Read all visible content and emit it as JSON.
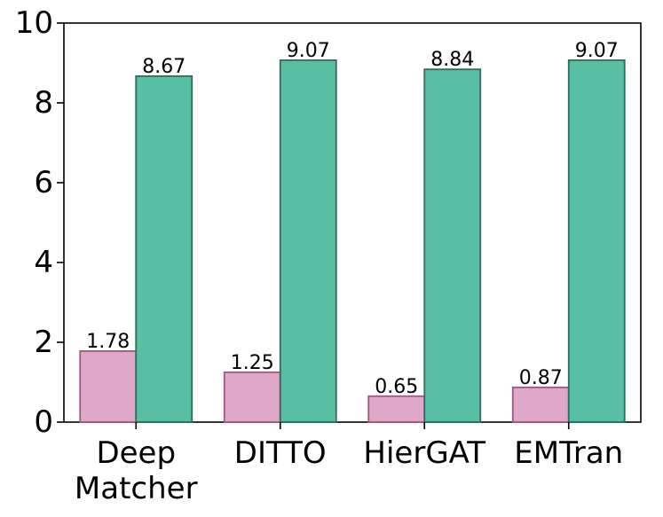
{
  "chart_data": {
    "type": "bar",
    "categories": [
      "Deep\nMatcher",
      "DITTO",
      "HierGAT",
      "EMTran"
    ],
    "series": [
      {
        "values": [
          1.78,
          1.25,
          0.65,
          0.87
        ],
        "color": "#e0a8c8",
        "edge": "#a0577e"
      },
      {
        "values": [
          8.67,
          9.07,
          8.84,
          9.07
        ],
        "color": "#59bfa3",
        "edge": "#2e6b60"
      }
    ],
    "ylim": [
      0,
      10
    ],
    "yticks": [
      0,
      2,
      4,
      6,
      8,
      10
    ],
    "value_labels": [
      [
        "1.78",
        "1.25",
        "0.65",
        "0.87"
      ],
      [
        "8.67",
        "9.07",
        "8.84",
        "9.07"
      ]
    ],
    "title": "",
    "xlabel": "",
    "ylabel": "",
    "grid": false,
    "legend": "none"
  }
}
